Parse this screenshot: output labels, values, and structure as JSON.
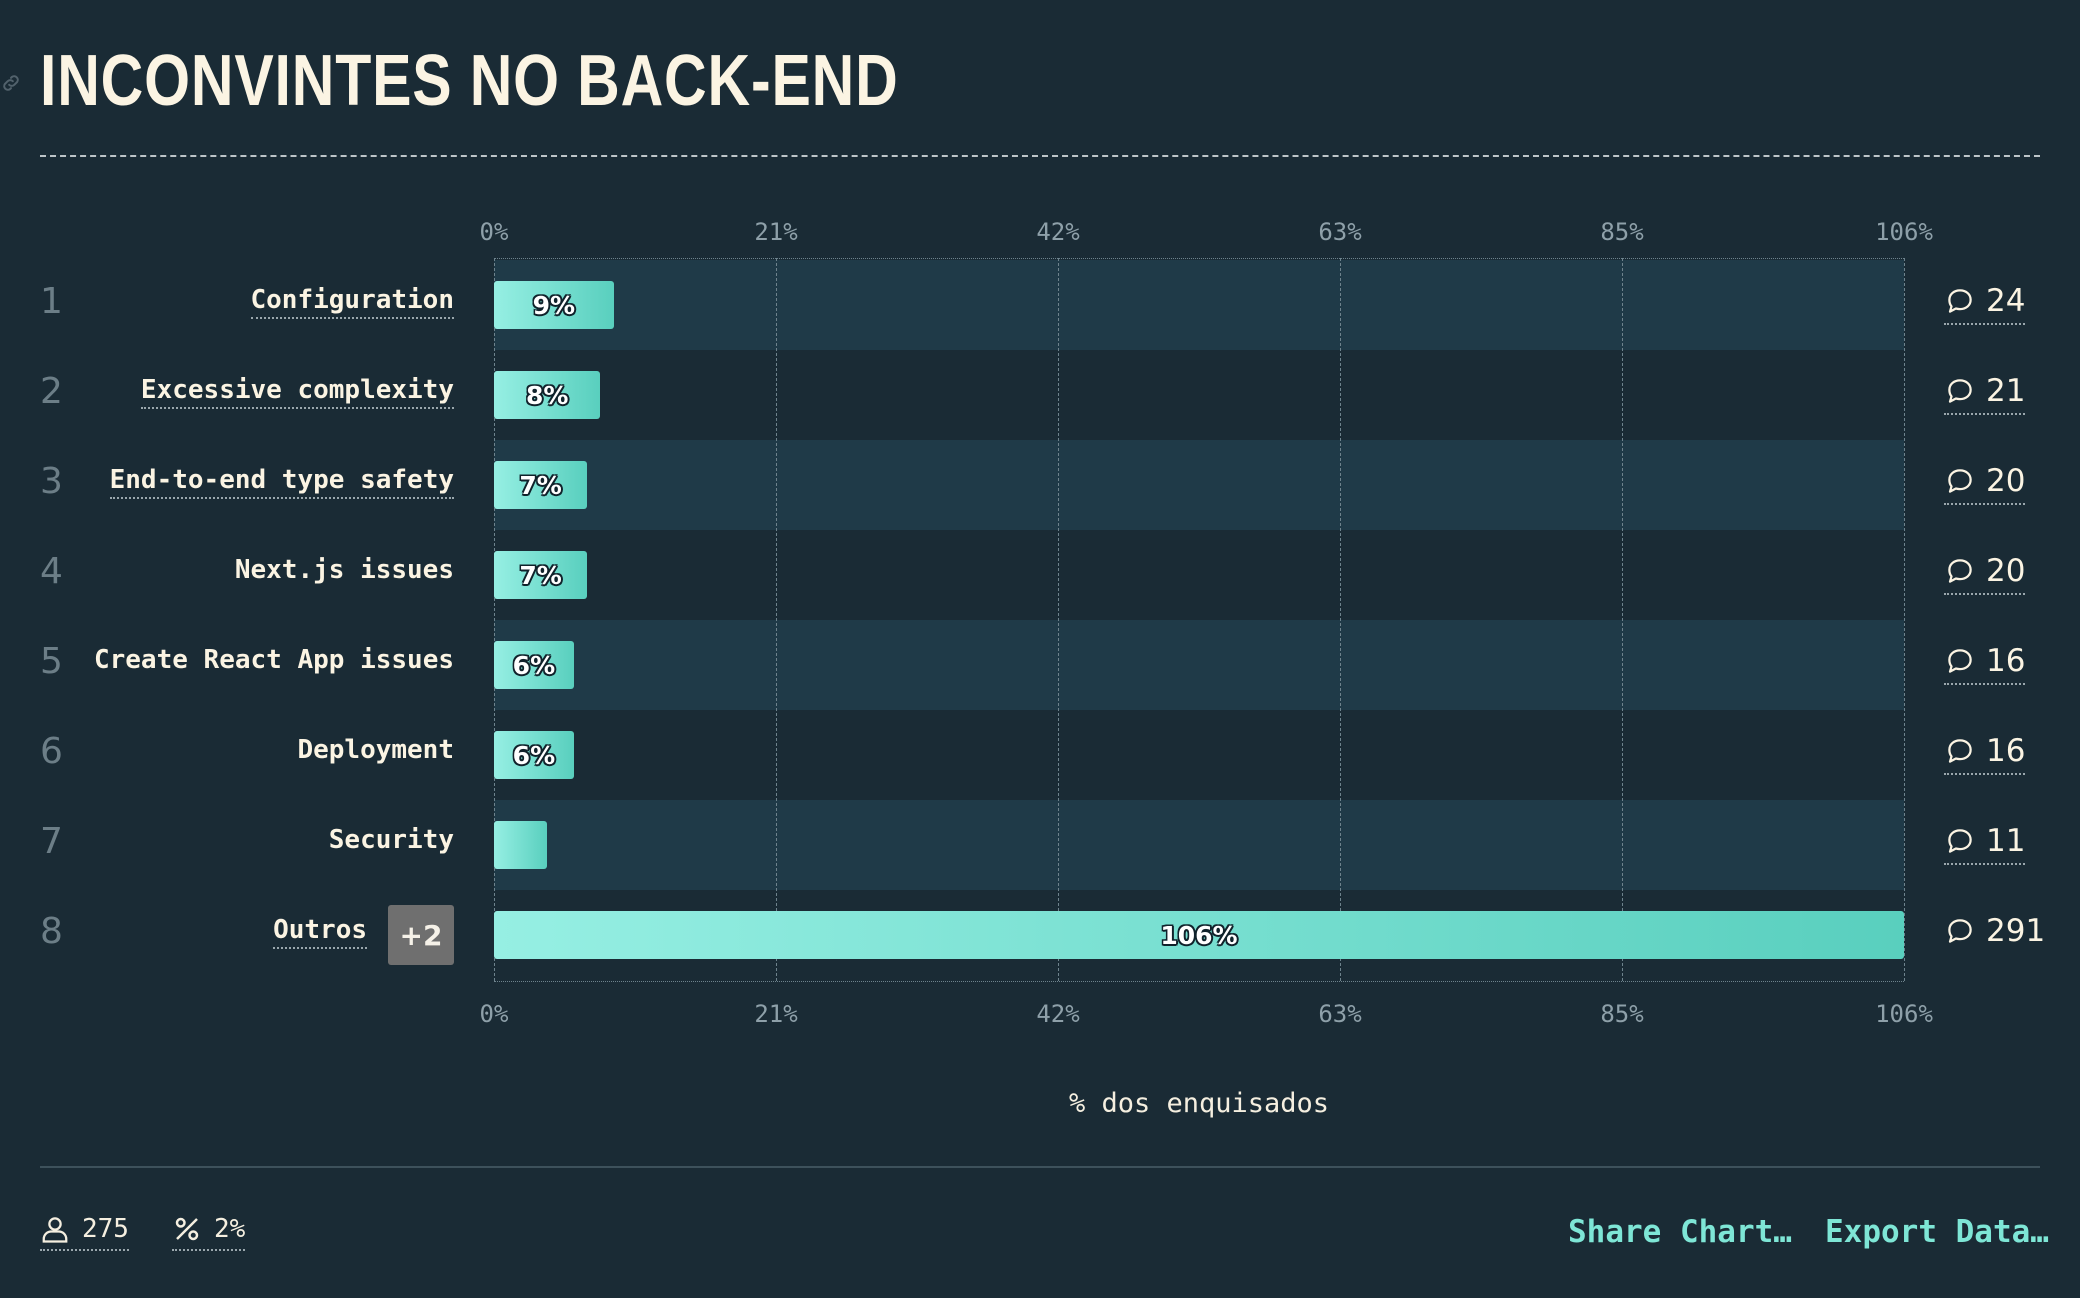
{
  "title": "INCONVINTES NO BACK-END",
  "accent_color": "#7ee6d6",
  "bar_gradient": [
    "#96efe3",
    "#59cfbe"
  ],
  "chart_data": {
    "type": "bar",
    "orientation": "horizontal",
    "categories": [
      "Configuration",
      "Excessive complexity",
      "End-to-end type safety",
      "Next.js issues",
      "Create React App issues",
      "Deployment",
      "Security",
      "Outros"
    ],
    "ranks": [
      "1",
      "2",
      "3",
      "4",
      "5",
      "6",
      "7",
      "8"
    ],
    "values": [
      9,
      8,
      7,
      7,
      6,
      6,
      4,
      106
    ],
    "value_labels": [
      "9%",
      "8%",
      "7%",
      "7%",
      "6%",
      "6%",
      "",
      "106%"
    ],
    "comment_counts": [
      "24",
      "21",
      "20",
      "20",
      "16",
      "16",
      "11",
      "291"
    ],
    "ticks": [
      "0%",
      "21%",
      "42%",
      "63%",
      "85%",
      "106%"
    ],
    "xlim": [
      0,
      106
    ],
    "xlabel": "% dos enquisados",
    "grid": true,
    "other_badge": "+2"
  },
  "footer": {
    "respondents": "275",
    "percent": "2%",
    "share_label": "Share Chart…",
    "export_label": "Export Data…"
  }
}
